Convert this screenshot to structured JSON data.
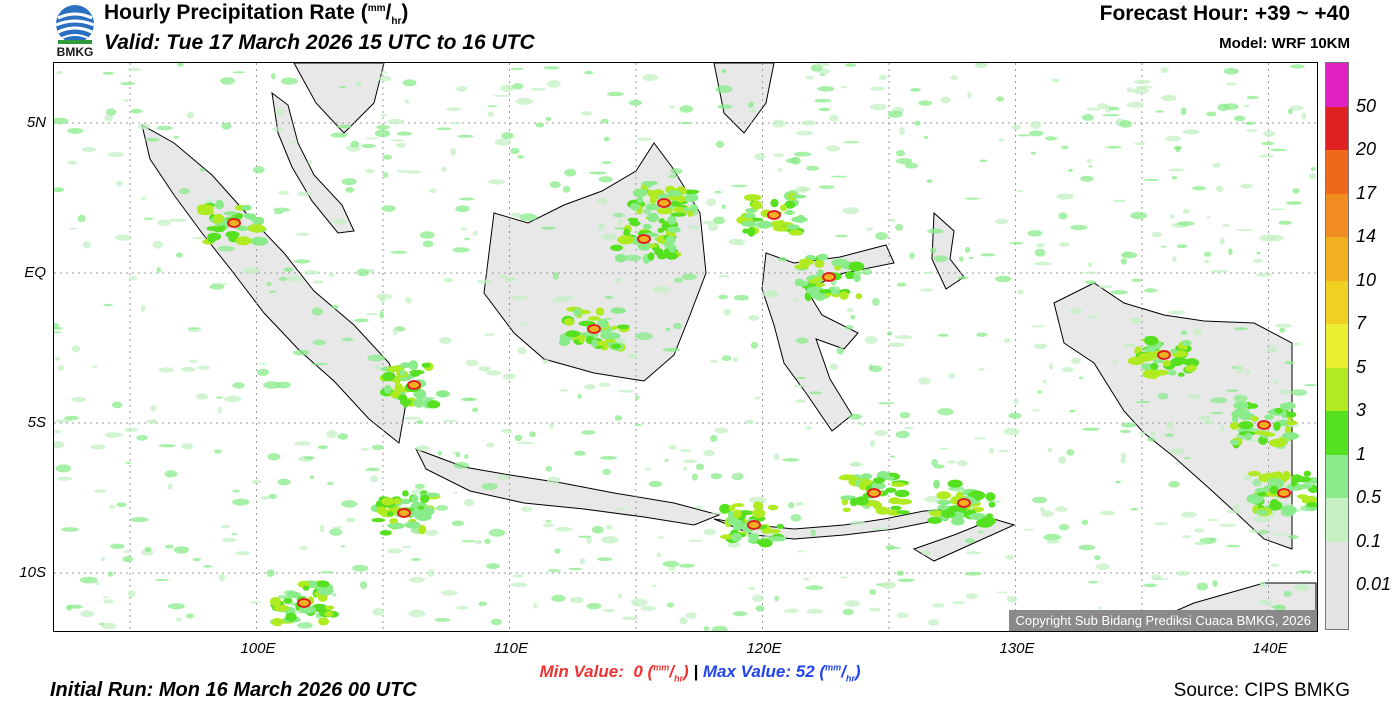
{
  "header": {
    "logo_text": "BMKG",
    "title_main": "Hourly Precipitation Rate (",
    "title_unit_sup": "mm",
    "title_slash": "/",
    "title_unit_sub": "hr",
    "title_close": ")",
    "valid": "Valid: Tue 17 March 2026 15 UTC to 16 UTC",
    "forecast_hour": "Forecast Hour: +39 ~ +40",
    "model": "Model: WRF 10KM"
  },
  "map": {
    "lat_labels": [
      "5N",
      "EQ",
      "5S",
      "10S"
    ],
    "lon_labels": [
      "100E",
      "110E",
      "120E",
      "130E",
      "140E"
    ],
    "copyright": "Copyright Sub Bidang Prediksi Cuaca BMKG, 2026",
    "land_color": "#e6e6e6",
    "coast_color": "#000000"
  },
  "colorbar": {
    "labels": [
      "50",
      "20",
      "17",
      "14",
      "10",
      "7",
      "5",
      "3",
      "1",
      "0.5",
      "0.1",
      "0.01"
    ],
    "colors": [
      "#e020c0",
      "#e02020",
      "#ee6a1a",
      "#f08c20",
      "#f0b020",
      "#f0d020",
      "#eaf030",
      "#b0ea20",
      "#55e020",
      "#8aeb8a",
      "#c4f0c4",
      "#e4e4e4"
    ]
  },
  "footer": {
    "min_label": "Min Value:",
    "min_value": "0",
    "max_label": "Max Value:",
    "max_value": "52",
    "unit_sup": "mm",
    "unit_sub": "hr",
    "separator": "|",
    "initial_run": "Initial Run: Mon 16 March 2026 00 UTC",
    "source": "Source: CIPS BMKG"
  }
}
